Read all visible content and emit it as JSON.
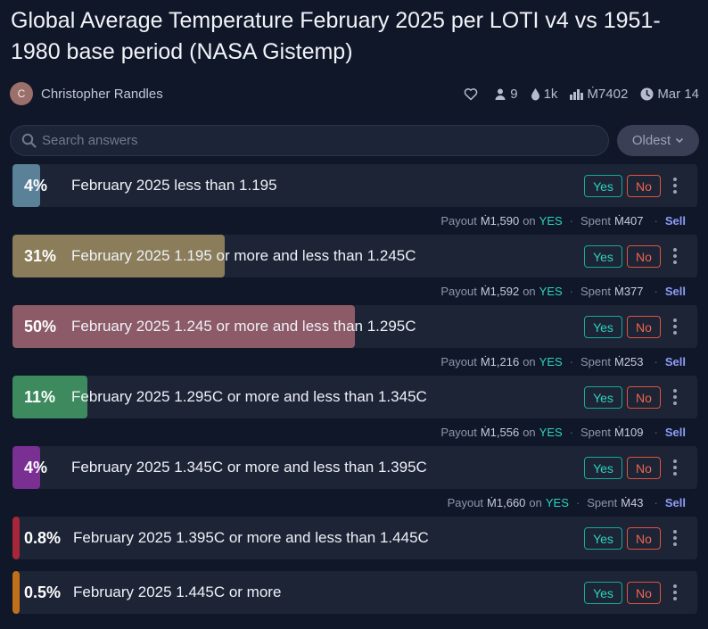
{
  "market": {
    "title": "Global Average Temperature February 2025 per LOTI v4 vs 1951-1980 base period (NASA Gistemp)",
    "author_initial": "C",
    "author": "Christopher Randles",
    "traders": "9",
    "liquidity": "1k",
    "volume": "Ṁ7402",
    "close_date": "Mar 14"
  },
  "search": {
    "placeholder": "Search answers"
  },
  "sort": {
    "label": "Oldest"
  },
  "labels": {
    "yes": "Yes",
    "no": "No",
    "payout": "Payout",
    "on": "on",
    "yes_caps": "YES",
    "spent": "Spent",
    "sell": "Sell",
    "dot": "·"
  },
  "colors": {
    "background": "#0f1729",
    "card": "#1c2436",
    "yes": "#2dd4bf",
    "no": "#f0664f",
    "sell": "#8f9cf5"
  },
  "answers": [
    {
      "prob": "4%",
      "prob_value": 0.04,
      "label": "February 2025 less than 1.195",
      "color": "#5b8198",
      "payout": "Ṁ1,590",
      "spent": "Ṁ407",
      "has_position": true
    },
    {
      "prob": "31%",
      "prob_value": 0.31,
      "label": "February 2025 1.195 or more and less than 1.245C",
      "color": "#8b7d5a",
      "payout": "Ṁ1,592",
      "spent": "Ṁ377",
      "has_position": true
    },
    {
      "prob": "50%",
      "prob_value": 0.5,
      "label": "February 2025 1.245 or more and less than 1.295C",
      "color": "#8c5b67",
      "payout": "Ṁ1,216",
      "spent": "Ṁ253",
      "has_position": true
    },
    {
      "prob": "11%",
      "prob_value": 0.11,
      "label": "February 2025 1.295C or more and less than 1.345C",
      "color": "#3e8a5f",
      "payout": "Ṁ1,556",
      "spent": "Ṁ109",
      "has_position": true
    },
    {
      "prob": "4%",
      "prob_value": 0.04,
      "label": "February 2025 1.345C or more and less than 1.395C",
      "color": "#7a2f92",
      "payout": "Ṁ1,660",
      "spent": "Ṁ43",
      "has_position": true
    },
    {
      "prob": "0.8%",
      "prob_value": 0.008,
      "label": "February 2025 1.395C or more and less than 1.445C",
      "color": "#a8263a",
      "has_position": false
    },
    {
      "prob": "0.5%",
      "prob_value": 0.005,
      "label": "February 2025 1.445C or more",
      "color": "#c07018",
      "has_position": false
    }
  ]
}
